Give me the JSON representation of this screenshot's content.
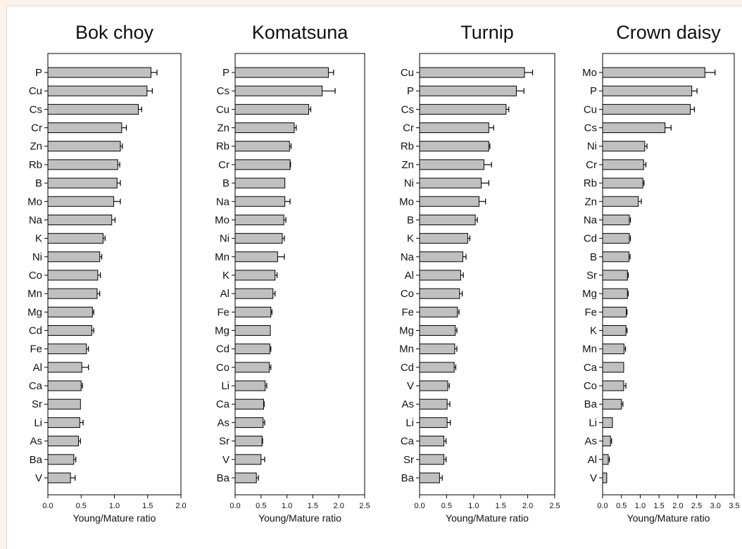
{
  "chart_data": [
    {
      "type": "bar",
      "orientation": "horizontal",
      "title": "Bok choy",
      "xlabel": "Young/Mature ratio",
      "ylabel": "",
      "xlim": [
        0,
        2.0
      ],
      "xticks": [
        "0.0",
        "0.5",
        "1.0",
        "1.5",
        "2.0"
      ],
      "categories": [
        "P",
        "Cu",
        "Cs",
        "Cr",
        "Zn",
        "Rb",
        "B",
        "Mo",
        "Na",
        "K",
        "Ni",
        "Co",
        "Mn",
        "Mg",
        "Cd",
        "Fe",
        "Al",
        "Ca",
        "Sr",
        "Li",
        "As",
        "Ba",
        "V"
      ],
      "values": [
        1.55,
        1.49,
        1.36,
        1.11,
        1.09,
        1.05,
        1.04,
        0.99,
        0.96,
        0.83,
        0.78,
        0.75,
        0.74,
        0.67,
        0.66,
        0.58,
        0.51,
        0.5,
        0.49,
        0.48,
        0.46,
        0.39,
        0.34
      ],
      "errors": [
        0.09,
        0.08,
        0.05,
        0.07,
        0.03,
        0.03,
        0.05,
        0.1,
        0.05,
        0.03,
        0.03,
        0.04,
        0.04,
        0.02,
        0.03,
        0.03,
        0.1,
        0.02,
        0.0,
        0.05,
        0.03,
        0.03,
        0.07
      ],
      "grid": false,
      "error_bars": true,
      "bar_color": "#c0c0c0",
      "edge_color": "#000000"
    },
    {
      "type": "bar",
      "orientation": "horizontal",
      "title": "Komatsuna",
      "xlabel": "Young/Mature ratio",
      "ylabel": "",
      "xlim": [
        0,
        2.5
      ],
      "xticks": [
        "0.0",
        "0.5",
        "1.0",
        "1.5",
        "2.0",
        "2.5"
      ],
      "categories": [
        "P",
        "Cs",
        "Cu",
        "Zn",
        "Rb",
        "Cr",
        "B",
        "Na",
        "Mo",
        "Ni",
        "Mn",
        "K",
        "Al",
        "Fe",
        "Mg",
        "Cd",
        "Co",
        "Li",
        "Ca",
        "As",
        "Sr",
        "V",
        "Ba"
      ],
      "values": [
        1.8,
        1.68,
        1.42,
        1.14,
        1.05,
        1.06,
        0.96,
        0.96,
        0.94,
        0.91,
        0.82,
        0.77,
        0.73,
        0.69,
        0.68,
        0.67,
        0.66,
        0.58,
        0.55,
        0.54,
        0.52,
        0.5,
        0.41
      ],
      "errors": [
        0.1,
        0.25,
        0.04,
        0.04,
        0.03,
        0.01,
        0.0,
        0.1,
        0.04,
        0.04,
        0.13,
        0.04,
        0.04,
        0.02,
        0.0,
        0.02,
        0.03,
        0.03,
        0.01,
        0.03,
        0.01,
        0.07,
        0.04
      ],
      "grid": false,
      "error_bars": true,
      "bar_color": "#c0c0c0",
      "edge_color": "#000000"
    },
    {
      "type": "bar",
      "orientation": "horizontal",
      "title": "Turnip",
      "xlabel": "Young/Mature ratio",
      "ylabel": "",
      "xlim": [
        0,
        2.5
      ],
      "xticks": [
        "0.0",
        "0.5",
        "1.0",
        "1.5",
        "2.0",
        "2.5"
      ],
      "categories": [
        "Cu",
        "P",
        "Cs",
        "Cr",
        "Rb",
        "Zn",
        "Ni",
        "Mo",
        "B",
        "K",
        "Na",
        "Al",
        "Co",
        "Fe",
        "Mg",
        "Mn",
        "Cd",
        "V",
        "As",
        "Li",
        "Ca",
        "Sr",
        "Ba"
      ],
      "values": [
        1.94,
        1.79,
        1.6,
        1.28,
        1.28,
        1.19,
        1.14,
        1.1,
        1.03,
        0.89,
        0.8,
        0.76,
        0.74,
        0.7,
        0.66,
        0.65,
        0.64,
        0.52,
        0.51,
        0.51,
        0.45,
        0.45,
        0.37
      ],
      "errors": [
        0.15,
        0.14,
        0.05,
        0.09,
        0.02,
        0.14,
        0.14,
        0.12,
        0.04,
        0.04,
        0.06,
        0.05,
        0.05,
        0.03,
        0.03,
        0.04,
        0.03,
        0.03,
        0.05,
        0.06,
        0.04,
        0.04,
        0.05
      ],
      "grid": false,
      "error_bars": true,
      "bar_color": "#c0c0c0",
      "edge_color": "#000000"
    },
    {
      "type": "bar",
      "orientation": "horizontal",
      "title": "Crown daisy",
      "xlabel": "Young/Mature ratio",
      "ylabel": "",
      "xlim": [
        0,
        3.5
      ],
      "xticks": [
        "0.0",
        "0.5",
        "1.0",
        "1.5",
        "2.0",
        "2.5",
        "3.0",
        "3.5"
      ],
      "categories": [
        "Mo",
        "P",
        "Cu",
        "Cs",
        "Ni",
        "Cr",
        "Rb",
        "Zn",
        "Na",
        "Cd",
        "B",
        "Sr",
        "Mg",
        "Fe",
        "K",
        "Mn",
        "Ca",
        "Co",
        "Ba",
        "Li",
        "As",
        "Al",
        "V"
      ],
      "values": [
        2.72,
        2.37,
        2.33,
        1.66,
        1.12,
        1.09,
        1.07,
        0.95,
        0.71,
        0.71,
        0.7,
        0.66,
        0.66,
        0.63,
        0.62,
        0.57,
        0.56,
        0.56,
        0.5,
        0.26,
        0.21,
        0.15,
        0.11
      ],
      "errors": [
        0.27,
        0.14,
        0.11,
        0.16,
        0.06,
        0.06,
        0.03,
        0.08,
        0.03,
        0.03,
        0.03,
        0.02,
        0.02,
        0.02,
        0.03,
        0.04,
        0.0,
        0.06,
        0.04,
        0.0,
        0.03,
        0.03,
        0.0
      ],
      "grid": false,
      "error_bars": true,
      "bar_color": "#c0c0c0",
      "edge_color": "#000000"
    }
  ]
}
